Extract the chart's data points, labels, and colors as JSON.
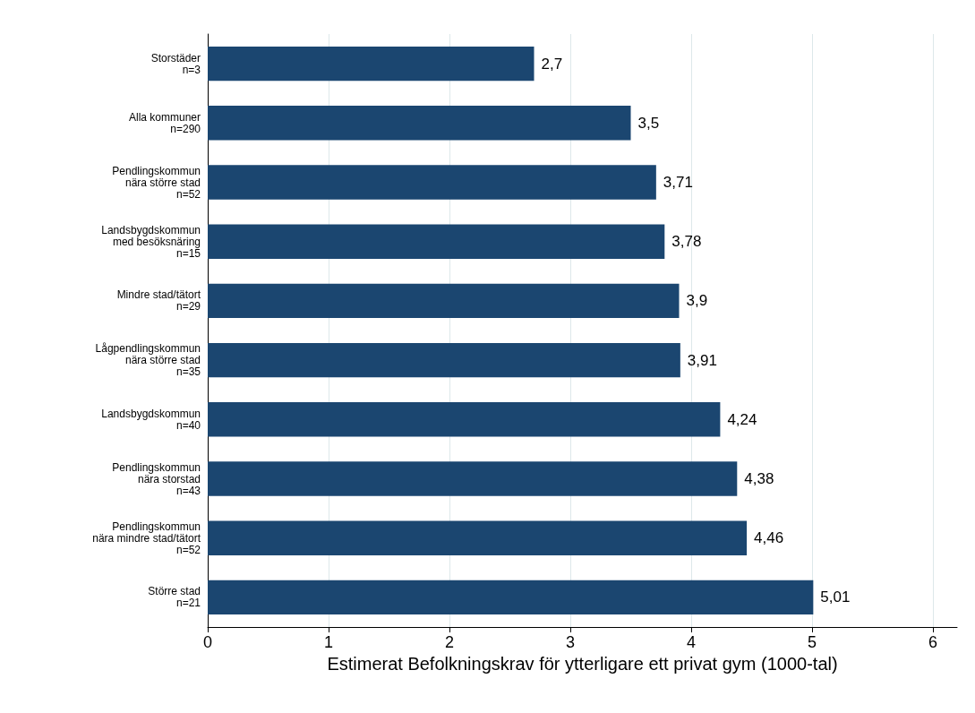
{
  "chart_data": {
    "type": "bar",
    "orientation": "horizontal",
    "xlabel": "Estimerat Befolkningskrav för ytterligare ett privat gym (1000-tal)",
    "categories": [
      "Storstäder\nn=3",
      "Alla kommuner\nn=290",
      "Pendlingskommun\nnära större stad\nn=52",
      "Landsbygdskommun\nmed besöksnäring\nn=15",
      "Mindre stad/tätort\nn=29",
      "Lågpendlingskommun\nnära större stad\nn=35",
      "Landsbygdskommun\nn=40",
      "Pendlingskommun\nnära storstad\nn=43",
      "Pendlingskommun\nnära mindre stad/tätort\nn=52",
      "Större stad\nn=21"
    ],
    "values": [
      2.7,
      3.5,
      3.71,
      3.78,
      3.9,
      3.91,
      4.24,
      4.38,
      4.46,
      5.01
    ],
    "value_labels": [
      "2,7",
      "3,5",
      "3,71",
      "3,78",
      "3,9",
      "3,91",
      "4,24",
      "4,38",
      "4,46",
      "5,01"
    ],
    "color": "#1b4670",
    "xlim": [
      0,
      6.2
    ],
    "xticks": [
      0,
      1,
      2,
      3,
      4,
      5,
      6
    ],
    "grid": "x"
  }
}
